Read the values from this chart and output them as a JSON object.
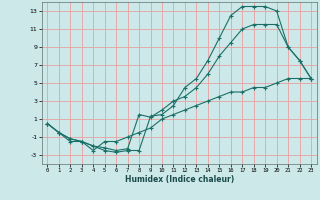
{
  "xlabel": "Humidex (Indice chaleur)",
  "bg_color": "#cce8e8",
  "grid_color": "#e8a0a0",
  "line_color": "#1a7068",
  "xlim": [
    -0.5,
    23.5
  ],
  "ylim": [
    -4,
    14
  ],
  "xticks": [
    0,
    1,
    2,
    3,
    4,
    5,
    6,
    7,
    8,
    9,
    10,
    11,
    12,
    13,
    14,
    15,
    16,
    17,
    18,
    19,
    20,
    21,
    22,
    23
  ],
  "yticks": [
    -3,
    -1,
    1,
    3,
    5,
    7,
    9,
    11,
    13
  ],
  "curve_up_x": [
    0,
    1,
    2,
    3,
    4,
    5,
    6,
    7,
    8,
    9,
    10,
    11,
    12,
    13,
    14,
    15,
    16,
    17,
    18,
    19,
    20,
    21,
    22,
    23
  ],
  "curve_up_y": [
    0.5,
    -0.5,
    -1.2,
    -1.5,
    -2.0,
    -2.5,
    -2.7,
    -2.5,
    -2.5,
    1.3,
    1.5,
    2.5,
    4.5,
    5.5,
    7.5,
    10.0,
    12.5,
    13.5,
    13.5,
    13.5,
    13.0,
    9.0,
    7.5,
    5.5
  ],
  "curve_mid_x": [
    0,
    1,
    2,
    3,
    4,
    5,
    6,
    7,
    8,
    9,
    10,
    11,
    12,
    13,
    14,
    15,
    16,
    17,
    18,
    19,
    20,
    21,
    22,
    23
  ],
  "curve_mid_y": [
    0.5,
    -0.5,
    -1.5,
    -1.5,
    -2.0,
    -2.2,
    -2.5,
    -2.3,
    1.5,
    1.2,
    2.0,
    3.0,
    3.5,
    4.5,
    6.0,
    8.0,
    9.5,
    11.0,
    11.5,
    11.5,
    11.5,
    9.0,
    7.5,
    5.5
  ],
  "curve_low_x": [
    0,
    1,
    2,
    3,
    4,
    5,
    6,
    7,
    8,
    9,
    10,
    11,
    12,
    13,
    14,
    15,
    16,
    17,
    18,
    19,
    20,
    21,
    22,
    23
  ],
  "curve_low_y": [
    0.5,
    -0.5,
    -1.2,
    -1.5,
    -2.5,
    -1.5,
    -1.5,
    -1.0,
    -0.5,
    0.0,
    1.0,
    1.5,
    2.0,
    2.5,
    3.0,
    3.5,
    4.0,
    4.0,
    4.5,
    4.5,
    5.0,
    5.5,
    5.5,
    5.5
  ]
}
